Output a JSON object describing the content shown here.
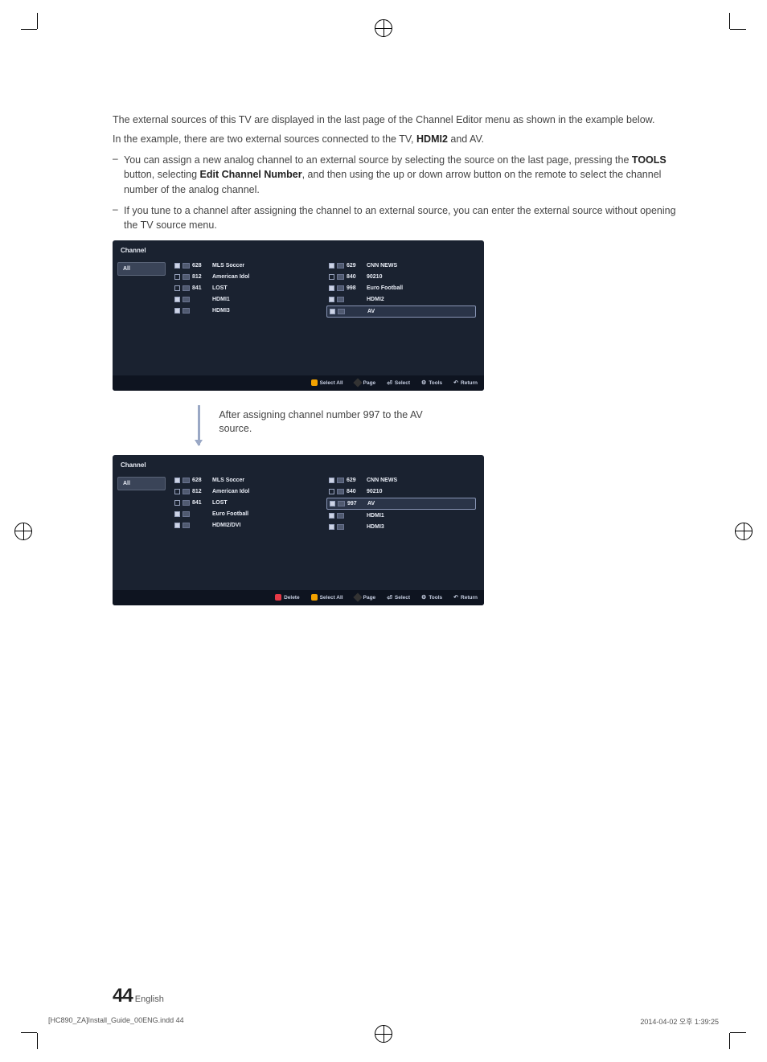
{
  "intro": {
    "line1_a": "The external sources of this TV are displayed in the last page of the Channel Editor menu as shown in the example below.",
    "line1_b_pre": "In the example, there are two external sources connected to the TV, ",
    "line1_b_src": "HDMI2",
    "line1_b_post": " and AV."
  },
  "bullets": [
    {
      "pre": "You can assign a new analog channel to an external source by selecting the source on the last page, pressing the ",
      "b1": "TOOLS",
      "mid1": " button, selecting ",
      "b2": "Edit Channel Number",
      "post": ", and then using the up or down arrow button on the remote to select the channel number of the analog channel."
    },
    {
      "pre": "If you tune to a channel after assigning the channel to an external source, you can enter the external source without opening the TV source menu.",
      "b1": "",
      "mid1": "",
      "b2": "",
      "post": ""
    }
  ],
  "panel_title": "Channel",
  "sidebar_all": "All",
  "panel1": {
    "left": [
      {
        "chk": true,
        "num": "628",
        "name": "MLS Soccer"
      },
      {
        "chk": false,
        "num": "812",
        "name": "American Idol"
      },
      {
        "chk": false,
        "num": "841",
        "name": "LOST"
      },
      {
        "chk": true,
        "num": "",
        "name": "HDMI1"
      },
      {
        "chk": true,
        "num": "",
        "name": "HDMI3"
      }
    ],
    "right": [
      {
        "chk": true,
        "num": "629",
        "name": "CNN NEWS"
      },
      {
        "chk": false,
        "num": "840",
        "name": "90210"
      },
      {
        "chk": true,
        "num": "998",
        "name": "Euro Football"
      },
      {
        "chk": true,
        "num": "",
        "name": "HDMI2"
      },
      {
        "chk": true,
        "num": "",
        "name": "AV",
        "sel": true
      }
    ],
    "footer": [
      "Select All",
      "Page",
      "Select",
      "Tools",
      "Return"
    ]
  },
  "caption": "After assigning channel number 997 to the AV source.",
  "panel2": {
    "left": [
      {
        "chk": true,
        "num": "628",
        "name": "MLS Soccer"
      },
      {
        "chk": false,
        "num": "812",
        "name": "American Idol"
      },
      {
        "chk": false,
        "num": "841",
        "name": "LOST"
      },
      {
        "chk": true,
        "num": "",
        "name": "Euro Football"
      },
      {
        "chk": true,
        "num": "",
        "name": "HDMI2/DVI"
      }
    ],
    "right": [
      {
        "chk": true,
        "num": "629",
        "name": "CNN NEWS"
      },
      {
        "chk": false,
        "num": "840",
        "name": "90210"
      },
      {
        "chk": true,
        "num": "997",
        "name": "AV",
        "sel": true
      },
      {
        "chk": true,
        "num": "",
        "name": "HDMI1"
      },
      {
        "chk": true,
        "num": "",
        "name": "HDMI3"
      }
    ],
    "footer_a": "Delete",
    "footer": [
      "Select All",
      "Page",
      "Select",
      "Tools",
      "Return"
    ]
  },
  "page": {
    "num": "44",
    "lang": "English"
  },
  "doc_footer": {
    "file": "[HC890_ZA]Install_Guide_00ENG.indd   44",
    "date": "2014-04-02   오후 1:39:25"
  },
  "colors": {
    "panel_bg": "#1a2230",
    "footer_bg": "#0e1420",
    "arrow": "#9aa8c5"
  }
}
